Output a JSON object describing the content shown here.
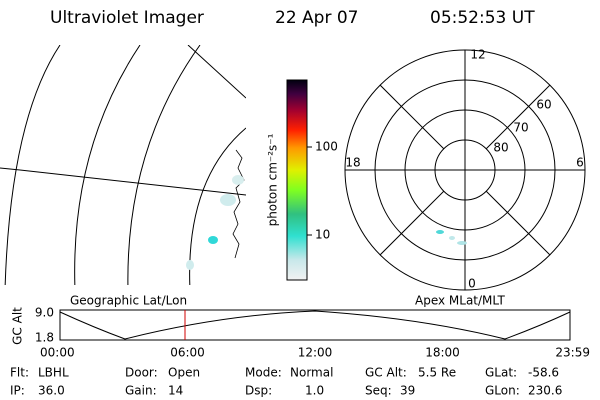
{
  "header": {
    "title": "Ultraviolet Imager",
    "date": "22 Apr 07",
    "time": "05:52:53 UT"
  },
  "colorbar": {
    "label": "photon cm⁻²s⁻¹",
    "ticks": [
      {
        "value": 10,
        "label": "10"
      },
      {
        "value": 100,
        "label": "100"
      }
    ]
  },
  "polar": {
    "clock_labels": [
      "12",
      "18",
      "6",
      "0"
    ],
    "ring_labels": [
      "60",
      "70",
      "80"
    ]
  },
  "timeline": {
    "axis_label": "GC Alt",
    "y_labels": [
      "9.0",
      "1.8"
    ],
    "left_title": "Geographic Lat/Lon",
    "right_title": "Apex MLat/MLT",
    "time_labels": [
      "00:00",
      "06:00",
      "12:00",
      "18:00",
      "23:59"
    ]
  },
  "footer": [
    [
      {
        "label": "Flt:",
        "value": "LBHL"
      },
      {
        "label": "Door:",
        "value": "Open"
      },
      {
        "label": "Mode:",
        "value": "Normal"
      },
      {
        "label": "GC Alt:",
        "value": "5.5 Re"
      },
      {
        "label": "GLat:",
        "value": "-58.6"
      }
    ],
    [
      {
        "label": "IP:",
        "value": "36.0"
      },
      {
        "label": "Gain:",
        "value": "14"
      },
      {
        "label": "Dsp:",
        "value": "1.0"
      },
      {
        "label": "Seq:",
        "value": "39"
      },
      {
        "label": "GLon:",
        "value": "230.6"
      }
    ]
  ]
}
